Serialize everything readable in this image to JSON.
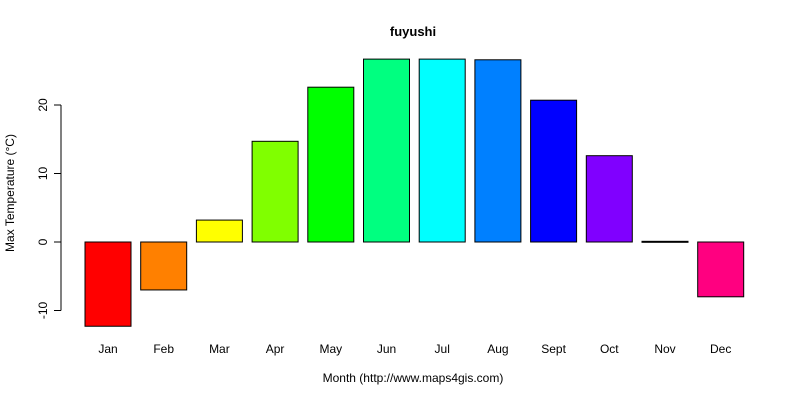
{
  "chart_data": {
    "type": "bar",
    "title": "fuyushi",
    "xlabel": "Month (http://www.maps4gis.com)",
    "ylabel": "Max Temperature (°C)",
    "categories": [
      "Jan",
      "Feb",
      "Mar",
      "Apr",
      "May",
      "Jun",
      "Jul",
      "Aug",
      "Sept",
      "Oct",
      "Nov",
      "Dec"
    ],
    "values": [
      -12.3,
      -7.0,
      3.2,
      14.7,
      22.6,
      26.7,
      26.7,
      26.6,
      20.7,
      12.6,
      0.1,
      -8.0
    ],
    "colors": [
      "#FF0000",
      "#FF8000",
      "#FFFF00",
      "#80FF00",
      "#00FF00",
      "#00FF80",
      "#00FFFF",
      "#0080FF",
      "#0000FF",
      "#8000FF",
      "#FF00FF",
      "#FF0080"
    ],
    "yticks": [
      -10,
      0,
      10,
      20
    ],
    "ylim": [
      -12.3,
      26.7
    ],
    "grid": false,
    "legend": "none"
  }
}
